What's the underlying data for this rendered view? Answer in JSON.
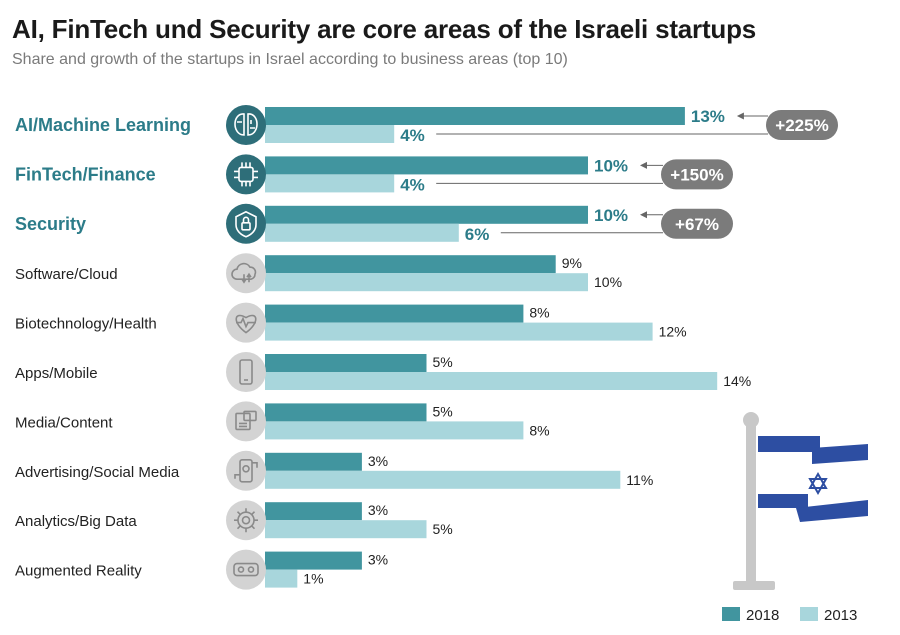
{
  "title": "AI, FinTech und Security are core areas of the Israeli startups",
  "subtitle": "Share and growth of the startups in Israel according to business areas (top 10)",
  "colors": {
    "bar_2018": "#41959f",
    "bar_2013": "#a8d6dc",
    "highlight_text": "#2c7c89",
    "growth_badge": "#7b7b7b",
    "icon_highlight": "#2e6e79",
    "icon_muted": "#d3d3d3",
    "flag_blue": "#2d4ea2",
    "pole": "#c8c8c8"
  },
  "chart_data": {
    "type": "bar",
    "orientation": "horizontal",
    "title": "AI, FinTech und Security are core areas of the Israeli startups",
    "subtitle": "Share and growth of the startups in Israel according to business areas (top 10)",
    "unit": "%",
    "categories": [
      "AI/Machine Learning",
      "FinTech/Finance",
      "Security",
      "Software/Cloud",
      "Biotechnology/Health",
      "Apps/Mobile",
      "Media/Content",
      "Advertising/Social Media",
      "Analytics/Big Data",
      "Augmented Reality"
    ],
    "icons": [
      "brain-icon",
      "chip-icon",
      "shield-lock-icon",
      "cloud-icon",
      "heart-pulse-icon",
      "smartphone-icon",
      "media-icon",
      "social-icon",
      "gear-data-icon",
      "vr-headset-icon"
    ],
    "highlighted": [
      true,
      true,
      true,
      false,
      false,
      false,
      false,
      false,
      false,
      false
    ],
    "series": [
      {
        "name": "2018",
        "values": [
          13,
          10,
          10,
          9,
          8,
          5,
          5,
          3,
          3,
          3
        ]
      },
      {
        "name": "2013",
        "values": [
          4,
          4,
          6,
          10,
          12,
          14,
          8,
          11,
          5,
          1
        ]
      }
    ],
    "growth": [
      "+225%",
      "+150%",
      "+67%"
    ],
    "legend": {
      "position": "bottom-right",
      "entries": [
        "2018",
        "2013"
      ]
    },
    "xlim": [
      0,
      14
    ],
    "grid": false
  }
}
